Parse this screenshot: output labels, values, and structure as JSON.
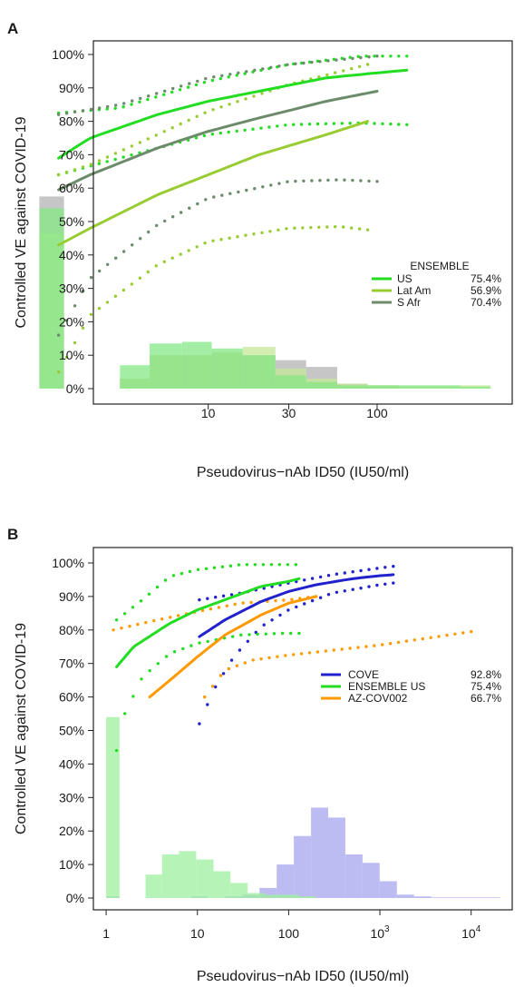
{
  "chart_data": [
    {
      "panel_label": "A",
      "type": "line",
      "xscale": "log",
      "xlabel": "Pseudovirus−nAb ID50 (IU50/ml)",
      "ylabel": "Controlled VE against COVID-19",
      "ylim": [
        0,
        100
      ],
      "x_ticks": [
        {
          "value": 10,
          "label": "10"
        },
        {
          "value": 30,
          "label": "30"
        },
        {
          "value": 100,
          "label": "100"
        }
      ],
      "y_ticks": [
        "0%",
        "10%",
        "20%",
        "30%",
        "40%",
        "50%",
        "60%",
        "70%",
        "80%",
        "90%",
        "100%"
      ],
      "legend": {
        "title": "ENSEMBLE",
        "position": "right"
      },
      "series": [
        {
          "name": "US",
          "value_label": "75.4%",
          "color": "#22dd22",
          "x": [
            1.3,
            2,
            5,
            10,
            20,
            50,
            100,
            150
          ],
          "y": [
            69,
            75,
            82,
            86,
            89,
            93,
            94.5,
            95.3
          ],
          "lower": [
            {
              "x": 1.3,
              "y": 64
            },
            {
              "x": 3,
              "y": 69
            },
            {
              "x": 10,
              "y": 76
            },
            {
              "x": 30,
              "y": 79
            },
            {
              "x": 80,
              "y": 79.5
            },
            {
              "x": 150,
              "y": 79
            }
          ],
          "upper": [
            {
              "x": 1.3,
              "y": 82.5
            },
            {
              "x": 3,
              "y": 84
            },
            {
              "x": 10,
              "y": 92
            },
            {
              "x": 30,
              "y": 97
            },
            {
              "x": 80,
              "y": 99.5
            },
            {
              "x": 150,
              "y": 99.5
            }
          ]
        },
        {
          "name": "Lat Am",
          "value_label": "56.9%",
          "color": "#99cc33",
          "x": [
            1.3,
            2,
            5,
            10,
            20,
            50,
            88
          ],
          "y": [
            43,
            48,
            58,
            64,
            70,
            76,
            80
          ],
          "lower": [
            {
              "x": 1.3,
              "y": 5
            },
            {
              "x": 2,
              "y": 22
            },
            {
              "x": 5,
              "y": 37
            },
            {
              "x": 10,
              "y": 44
            },
            {
              "x": 30,
              "y": 48
            },
            {
              "x": 60,
              "y": 48.5
            },
            {
              "x": 88,
              "y": 47.5
            }
          ],
          "upper": [
            {
              "x": 1.3,
              "y": 64
            },
            {
              "x": 2,
              "y": 67
            },
            {
              "x": 5,
              "y": 76
            },
            {
              "x": 10,
              "y": 83
            },
            {
              "x": 30,
              "y": 91
            },
            {
              "x": 88,
              "y": 97
            }
          ]
        },
        {
          "name": "S Afr",
          "value_label": "70.4%",
          "color": "#6b8b6b",
          "x": [
            1.3,
            2,
            5,
            10,
            20,
            50,
            100
          ],
          "y": [
            59.5,
            64,
            72,
            77,
            81,
            86,
            89
          ],
          "lower": [
            {
              "x": 1.3,
              "y": 16
            },
            {
              "x": 2,
              "y": 33
            },
            {
              "x": 5,
              "y": 49
            },
            {
              "x": 10,
              "y": 57
            },
            {
              "x": 30,
              "y": 62
            },
            {
              "x": 60,
              "y": 62.5
            },
            {
              "x": 100,
              "y": 62
            }
          ],
          "upper": [
            {
              "x": 1.3,
              "y": 82
            },
            {
              "x": 3,
              "y": 85
            },
            {
              "x": 10,
              "y": 93
            },
            {
              "x": 30,
              "y": 97
            },
            {
              "x": 100,
              "y": 99.5
            }
          ]
        }
      ],
      "histograms": [
        {
          "color": "#b3b3b3",
          "bars": [
            {
              "x0": 1,
              "x1": 1.4,
              "pct": 57.5
            },
            {
              "x0": 3,
              "x1": 4.5,
              "pct": 3
            },
            {
              "x0": 4.5,
              "x1": 7,
              "pct": 10
            },
            {
              "x0": 7,
              "x1": 10.5,
              "pct": 10
            },
            {
              "x0": 10.5,
              "x1": 16,
              "pct": 10.5
            },
            {
              "x0": 16,
              "x1": 25,
              "pct": 10
            },
            {
              "x0": 25,
              "x1": 38,
              "pct": 8.5
            },
            {
              "x0": 38,
              "x1": 58,
              "pct": 6.5
            },
            {
              "x0": 58,
              "x1": 88,
              "pct": 1.5
            },
            {
              "x0": 88,
              "x1": 135,
              "pct": 0.8
            }
          ]
        },
        {
          "color": "#c6e89a",
          "bars": [
            {
              "x0": 1,
              "x1": 1.4,
              "pct": 46.5
            },
            {
              "x0": 3,
              "x1": 4.5,
              "pct": 3
            },
            {
              "x0": 4.5,
              "x1": 7,
              "pct": 10
            },
            {
              "x0": 7,
              "x1": 10.5,
              "pct": 10
            },
            {
              "x0": 10.5,
              "x1": 16,
              "pct": 11
            },
            {
              "x0": 16,
              "x1": 25,
              "pct": 12.5
            },
            {
              "x0": 25,
              "x1": 38,
              "pct": 6
            },
            {
              "x0": 38,
              "x1": 58,
              "pct": 3
            },
            {
              "x0": 58,
              "x1": 88,
              "pct": 1.5
            },
            {
              "x0": 88,
              "x1": 135,
              "pct": 1
            },
            {
              "x0": 135,
              "x1": 205,
              "pct": 0.8
            },
            {
              "x0": 205,
              "x1": 310,
              "pct": 0.8
            },
            {
              "x0": 310,
              "x1": 470,
              "pct": 1
            }
          ]
        },
        {
          "color": "#86e886",
          "bars": [
            {
              "x0": 1,
              "x1": 1.4,
              "pct": 54
            },
            {
              "x0": 3,
              "x1": 4.5,
              "pct": 7
            },
            {
              "x0": 4.5,
              "x1": 7,
              "pct": 13.5
            },
            {
              "x0": 7,
              "x1": 10.5,
              "pct": 14
            },
            {
              "x0": 10.5,
              "x1": 16,
              "pct": 12
            },
            {
              "x0": 16,
              "x1": 25,
              "pct": 10
            },
            {
              "x0": 25,
              "x1": 38,
              "pct": 4
            },
            {
              "x0": 38,
              "x1": 58,
              "pct": 2
            },
            {
              "x0": 58,
              "x1": 88,
              "pct": 1
            },
            {
              "x0": 88,
              "x1": 135,
              "pct": 1
            },
            {
              "x0": 135,
              "x1": 205,
              "pct": 1
            },
            {
              "x0": 205,
              "x1": 310,
              "pct": 1
            },
            {
              "x0": 310,
              "x1": 470,
              "pct": 0.6
            }
          ]
        }
      ]
    },
    {
      "panel_label": "B",
      "type": "line",
      "xscale": "log",
      "xlabel": "Pseudovirus−nAb ID50 (IU50/ml)",
      "ylabel": "Controlled VE against COVID-19",
      "ylim": [
        0,
        100
      ],
      "x_ticks": [
        {
          "value": 1,
          "label": "1"
        },
        {
          "value": 10,
          "label": "10"
        },
        {
          "value": 100,
          "label": "100"
        },
        {
          "value": 1000,
          "base": "10",
          "exp": "3"
        },
        {
          "value": 10000,
          "base": "10",
          "exp": "4"
        }
      ],
      "y_ticks": [
        "0%",
        "10%",
        "20%",
        "30%",
        "40%",
        "50%",
        "60%",
        "70%",
        "80%",
        "90%",
        "100%"
      ],
      "legend": {
        "position": "right"
      },
      "series": [
        {
          "name": "COVE",
          "value_label": "92.8%",
          "color": "#2222cc",
          "x": [
            10.5,
            20,
            50,
            100,
            200,
            500,
            1000,
            1400
          ],
          "y": [
            78,
            83,
            88.5,
            91.5,
            93.5,
            95.3,
            96.2,
            96.5
          ],
          "lower": [
            {
              "x": 10.5,
              "y": 52
            },
            {
              "x": 15,
              "y": 62
            },
            {
              "x": 25,
              "y": 72
            },
            {
              "x": 50,
              "y": 81
            },
            {
              "x": 100,
              "y": 86
            },
            {
              "x": 300,
              "y": 91
            },
            {
              "x": 1000,
              "y": 93.5
            },
            {
              "x": 1400,
              "y": 94
            }
          ],
          "upper": [
            {
              "x": 10.5,
              "y": 89
            },
            {
              "x": 30,
              "y": 91
            },
            {
              "x": 100,
              "y": 94
            },
            {
              "x": 300,
              "y": 96.5
            },
            {
              "x": 1000,
              "y": 98.5
            },
            {
              "x": 1400,
              "y": 99
            }
          ]
        },
        {
          "name": "ENSEMBLE US",
          "value_label": "75.4%",
          "color": "#22dd22",
          "x": [
            1.3,
            2,
            5,
            10,
            20,
            50,
            100,
            130
          ],
          "y": [
            69,
            75,
            82,
            86,
            89,
            93,
            94.5,
            95.3
          ],
          "lower": [
            {
              "x": 1.3,
              "y": 44
            },
            {
              "x": 1.6,
              "y": 55
            },
            {
              "x": 2.5,
              "y": 66
            },
            {
              "x": 5,
              "y": 73
            },
            {
              "x": 10,
              "y": 76
            },
            {
              "x": 30,
              "y": 78.5
            },
            {
              "x": 80,
              "y": 79
            },
            {
              "x": 130,
              "y": 79
            }
          ],
          "upper": [
            {
              "x": 1.3,
              "y": 83
            },
            {
              "x": 2.5,
              "y": 89
            },
            {
              "x": 5,
              "y": 96
            },
            {
              "x": 10,
              "y": 98
            },
            {
              "x": 30,
              "y": 99.5
            },
            {
              "x": 120,
              "y": 99.5
            }
          ]
        },
        {
          "name": "AZ-COV002",
          "value_label": "66.7%",
          "color": "#ff9900",
          "x": [
            3,
            5,
            10,
            20,
            50,
            100,
            200
          ],
          "y": [
            60,
            65,
            72,
            78.5,
            84.5,
            88,
            90
          ],
          "lower": [
            {
              "x": 12,
              "y": 60
            },
            {
              "x": 15,
              "y": 63.5
            },
            {
              "x": 20,
              "y": 68
            },
            {
              "x": 40,
              "y": 71
            },
            {
              "x": 100,
              "y": 72.5
            },
            {
              "x": 1000,
              "y": 75.5
            },
            {
              "x": 10000,
              "y": 79.5
            }
          ],
          "upper": [
            {
              "x": 1.2,
              "y": 80
            },
            {
              "x": 3,
              "y": 82.5
            },
            {
              "x": 10,
              "y": 85.5
            },
            {
              "x": 30,
              "y": 88
            },
            {
              "x": 100,
              "y": 89
            },
            {
              "x": 200,
              "y": 90
            }
          ]
        }
      ],
      "histograms": [
        {
          "color": "#a6a6ee",
          "bars": [
            {
              "x0": 1,
              "x1": 1.4,
              "pct": 0.5
            },
            {
              "x0": 8.5,
              "x1": 13,
              "pct": 0.5
            },
            {
              "x0": 20,
              "x1": 31,
              "pct": 0.5
            },
            {
              "x0": 31,
              "x1": 48,
              "pct": 1
            },
            {
              "x0": 48,
              "x1": 74,
              "pct": 3
            },
            {
              "x0": 74,
              "x1": 114,
              "pct": 10
            },
            {
              "x0": 114,
              "x1": 176,
              "pct": 18.5
            },
            {
              "x0": 176,
              "x1": 271,
              "pct": 27
            },
            {
              "x0": 271,
              "x1": 418,
              "pct": 24
            },
            {
              "x0": 418,
              "x1": 645,
              "pct": 13
            },
            {
              "x0": 645,
              "x1": 995,
              "pct": 10.5
            },
            {
              "x0": 995,
              "x1": 1535,
              "pct": 5
            },
            {
              "x0": 1535,
              "x1": 2370,
              "pct": 1
            },
            {
              "x0": 2370,
              "x1": 3655,
              "pct": 0.5
            },
            {
              "x0": 3655,
              "x1": 5640,
              "pct": 0.2
            },
            {
              "x0": 5640,
              "x1": 8700,
              "pct": 0.2
            },
            {
              "x0": 8700,
              "x1": 13430,
              "pct": 0.2
            },
            {
              "x0": 13430,
              "x1": 20720,
              "pct": 0.2
            }
          ]
        },
        {
          "color": "#9ef09e",
          "bars": [
            {
              "x0": 1,
              "x1": 1.4,
              "pct": 54
            },
            {
              "x0": 2.7,
              "x1": 4.1,
              "pct": 7
            },
            {
              "x0": 4.1,
              "x1": 6.3,
              "pct": 13
            },
            {
              "x0": 6.3,
              "x1": 9.7,
              "pct": 14
            },
            {
              "x0": 9.7,
              "x1": 15,
              "pct": 11.5
            },
            {
              "x0": 15,
              "x1": 23,
              "pct": 8
            },
            {
              "x0": 23,
              "x1": 35.5,
              "pct": 4.5
            },
            {
              "x0": 35.5,
              "x1": 55,
              "pct": 1.5
            },
            {
              "x0": 55,
              "x1": 85,
              "pct": 1
            },
            {
              "x0": 85,
              "x1": 130,
              "pct": 1
            },
            {
              "x0": 130,
              "x1": 200,
              "pct": 0.5
            }
          ]
        }
      ]
    }
  ]
}
